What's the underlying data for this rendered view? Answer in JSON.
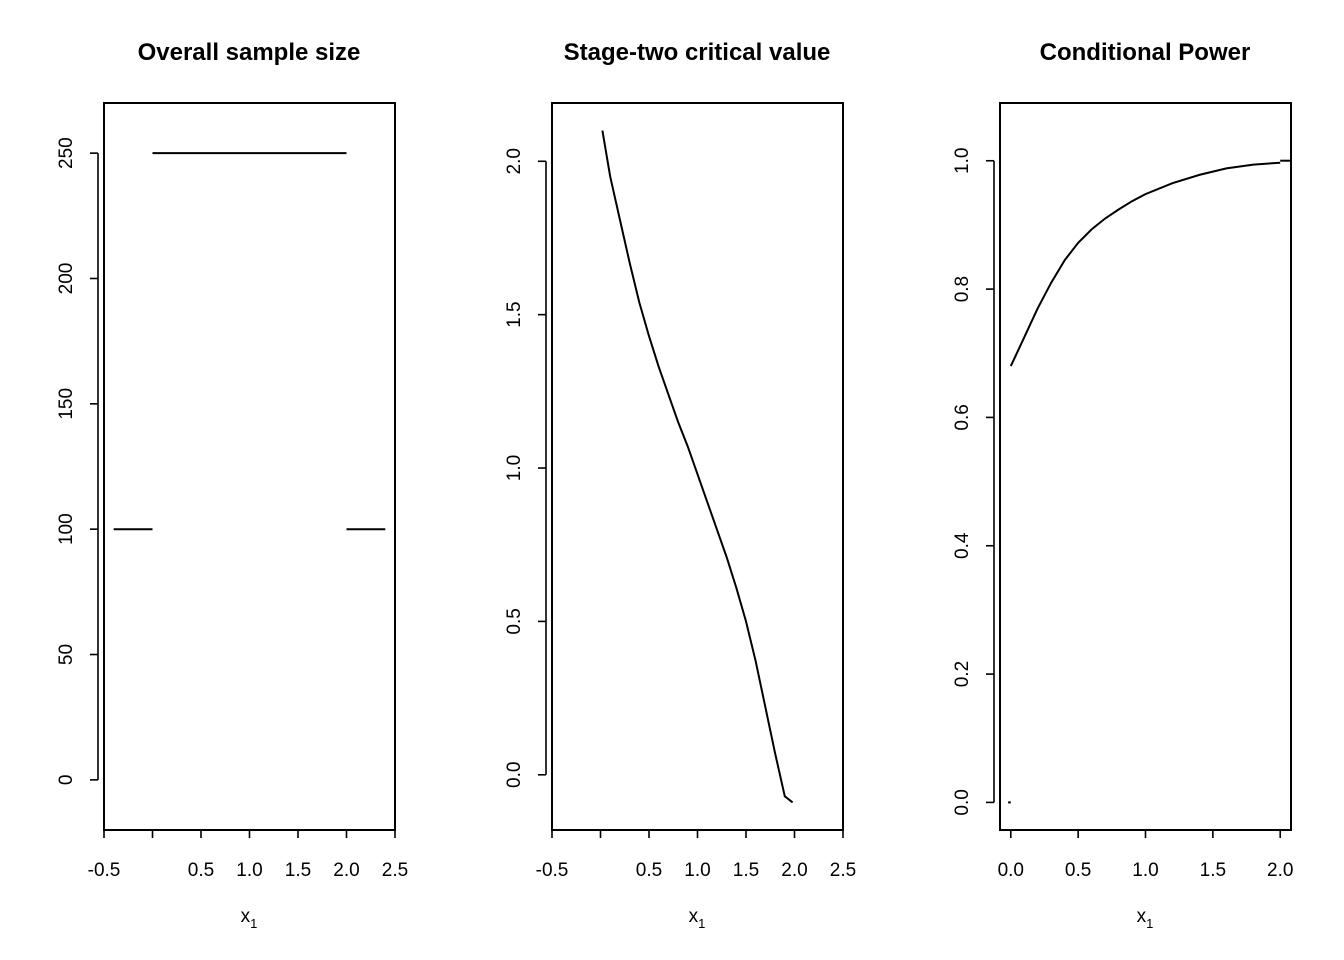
{
  "chart_data": [
    {
      "type": "line",
      "title": "Overall sample size",
      "xlabel": "x",
      "xlabel_sub": "1",
      "xlim": [
        -0.5,
        2.5
      ],
      "ylim": [
        -20,
        270
      ],
      "xticks": [
        -0.5,
        0,
        0.5,
        1.0,
        1.5,
        2.0,
        2.5
      ],
      "xtick_labels": [
        "-0.5",
        "",
        "0.5",
        "1.0",
        "1.5",
        "2.0",
        "2.5"
      ],
      "yticks": [
        0,
        50,
        100,
        150,
        200,
        250
      ],
      "ytick_labels": [
        "0",
        "50",
        "100",
        "150",
        "200",
        "250"
      ],
      "grid": false,
      "series": [
        {
          "x": [
            -0.4,
            0.0
          ],
          "y": [
            100,
            100
          ]
        },
        {
          "x": [
            0.0,
            2.0
          ],
          "y": [
            250,
            250
          ]
        },
        {
          "x": [
            2.0,
            2.4
          ],
          "y": [
            100,
            100
          ]
        }
      ]
    },
    {
      "type": "line",
      "title": "Stage-two critical value",
      "xlabel": "x",
      "xlabel_sub": "1",
      "xlim": [
        -0.5,
        2.5
      ],
      "ylim": [
        -0.18,
        2.19
      ],
      "xticks": [
        -0.5,
        0,
        0.5,
        1.0,
        1.5,
        2.0,
        2.5
      ],
      "xtick_labels": [
        "-0.5",
        "",
        "0.5",
        "1.0",
        "1.5",
        "2.0",
        "2.5"
      ],
      "yticks": [
        0.0,
        0.5,
        1.0,
        1.5,
        2.0
      ],
      "ytick_labels": [
        "0.0",
        "0.5",
        "1.0",
        "1.5",
        "2.0"
      ],
      "grid": false,
      "series": [
        {
          "x": [
            0.02,
            0.1,
            0.2,
            0.3,
            0.4,
            0.5,
            0.6,
            0.7,
            0.8,
            0.9,
            1.0,
            1.1,
            1.2,
            1.3,
            1.4,
            1.5,
            1.6,
            1.7,
            1.8,
            1.9,
            1.98
          ],
          "y": [
            2.1,
            1.95,
            1.81,
            1.67,
            1.54,
            1.43,
            1.33,
            1.24,
            1.15,
            1.07,
            0.98,
            0.89,
            0.8,
            0.71,
            0.61,
            0.5,
            0.37,
            0.22,
            0.07,
            -0.07,
            -0.09
          ]
        }
      ]
    },
    {
      "type": "line",
      "title": "Conditional Power",
      "xlabel": "x",
      "xlabel_sub": "1",
      "xlim": [
        -0.08,
        2.08
      ],
      "ylim": [
        -0.043,
        1.09
      ],
      "xticks": [
        0.0,
        0.5,
        1.0,
        1.5,
        2.0
      ],
      "xtick_labels": [
        "0.0",
        "0.5",
        "1.0",
        "1.5",
        "2.0"
      ],
      "yticks": [
        0.0,
        0.2,
        0.4,
        0.6,
        0.8,
        1.0
      ],
      "ytick_labels": [
        "0.0",
        "0.2",
        "0.4",
        "0.6",
        "0.8",
        "1.0"
      ],
      "grid": false,
      "series": [
        {
          "x": [
            -0.02,
            0.0
          ],
          "y": [
            0.0,
            0.0
          ]
        },
        {
          "x": [
            0.0,
            0.1,
            0.2,
            0.3,
            0.4,
            0.5,
            0.6,
            0.7,
            0.8,
            0.9,
            1.0,
            1.2,
            1.4,
            1.6,
            1.8,
            2.0
          ],
          "y": [
            0.68,
            0.725,
            0.77,
            0.81,
            0.845,
            0.872,
            0.893,
            0.91,
            0.924,
            0.937,
            0.948,
            0.965,
            0.978,
            0.988,
            0.994,
            0.997
          ]
        },
        {
          "x": [
            2.0,
            2.08
          ],
          "y": [
            1.0,
            1.0
          ]
        }
      ]
    }
  ]
}
